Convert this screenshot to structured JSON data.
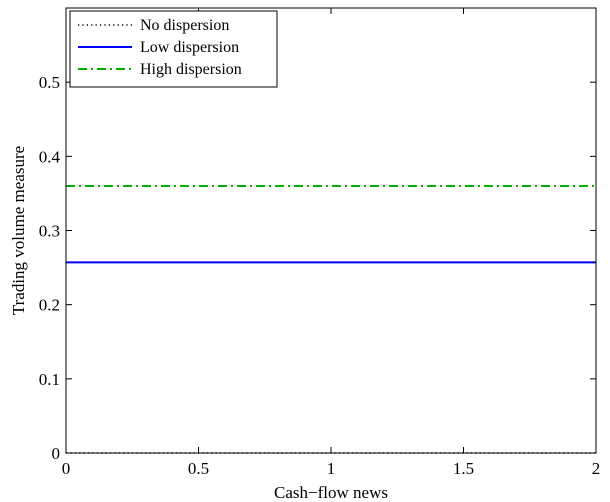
{
  "chart_data": {
    "type": "line",
    "title": "",
    "xlabel": "Cash−flow news",
    "ylabel": "Trading volume measure",
    "xlim": [
      0,
      2
    ],
    "ylim": [
      0,
      0.6
    ],
    "x_ticks": [
      0,
      0.5,
      1,
      1.5,
      2
    ],
    "x_tick_labels": [
      "0",
      "0.5",
      "1",
      "1.5",
      "2"
    ],
    "y_ticks": [
      0,
      0.1,
      0.2,
      0.3,
      0.4,
      0.5
    ],
    "y_tick_labels": [
      "0",
      "0.1",
      "0.2",
      "0.3",
      "0.4",
      "0.5"
    ],
    "grid": false,
    "legend_position": "top-left",
    "series": [
      {
        "name": "No dispersion",
        "x": [
          0,
          2
        ],
        "y": [
          0,
          0
        ],
        "color": "#000000",
        "style": "dotted"
      },
      {
        "name": "Low dispersion",
        "x": [
          0,
          2
        ],
        "y": [
          0.257,
          0.257
        ],
        "color": "#0000ff",
        "style": "solid"
      },
      {
        "name": "High dispersion",
        "x": [
          0,
          2
        ],
        "y": [
          0.36,
          0.36
        ],
        "color": "#00b000",
        "style": "dash-dot"
      }
    ]
  }
}
